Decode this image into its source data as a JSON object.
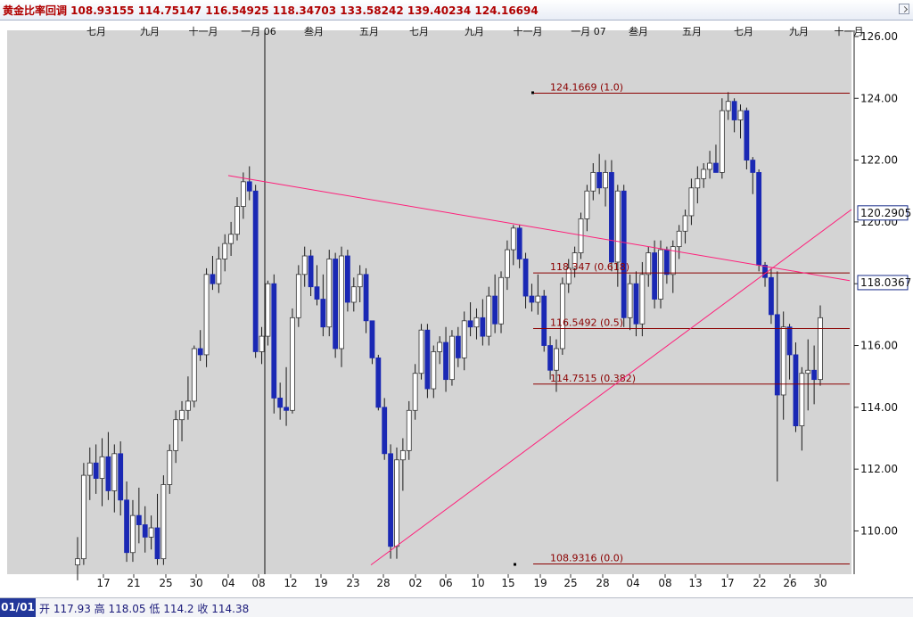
{
  "window": {
    "title": "黄金比率回调 108.93155 114.75147 116.54925 118.34703 133.58242 139.40234 124.16694"
  },
  "status": {
    "period_tab": "01/01",
    "open_label": "开",
    "open_value": "117.93",
    "high_label": "高",
    "high_value": "118.05",
    "low_label": "低",
    "low_value": "114.2",
    "close_label": "收",
    "close_value": "114.38"
  },
  "colors": {
    "plot_background": "#d4d4d4",
    "up_candle": "#ffffff",
    "down_candle": "#1a28b4",
    "wick": "#1a1a1a",
    "fib_line": "#8b0000",
    "fib_label": "#8b0000",
    "trend_line": "#ff1f7a",
    "value_box_border": "#1a2e8a"
  },
  "chart_data": {
    "type": "candlestick",
    "y_range": [
      108.6,
      126.2
    ],
    "y_ticks": [
      "126.00",
      "124.00",
      "122.00",
      "120.00",
      "118.00",
      "116.00",
      "114.00",
      "112.00",
      "110.00"
    ],
    "y_tick_values": [
      126,
      124,
      122,
      120,
      118,
      116,
      114,
      112,
      110
    ],
    "grid": false,
    "month_labels": [
      "七月",
      "九月",
      "十一月",
      "一月 06",
      "叁月",
      "五月",
      "七月",
      "九月",
      "十一月",
      "一月 07",
      "叁月",
      "五月",
      "七月",
      "九月",
      "十一月"
    ],
    "day_labels": [
      "17",
      "21",
      "25",
      "30",
      "04",
      "08",
      "12",
      "19",
      "23",
      "28",
      "02",
      "06",
      "10",
      "15",
      "19",
      "25",
      "28",
      "04",
      "08",
      "13",
      "17",
      "22",
      "26",
      "30"
    ],
    "fib_levels": [
      {
        "label": "124.1669 (1.0)",
        "value": 124.1669
      },
      {
        "label": "118.347 (0.618)",
        "value": 118.347
      },
      {
        "label": "116.5492 (0.5)",
        "value": 116.5492
      },
      {
        "label": "114.7515 (0.382)",
        "value": 114.7515
      },
      {
        "label": "108.9316 (0.0)",
        "value": 108.9316
      }
    ],
    "value_boxes": [
      {
        "label": "120.2905",
        "value": 120.2905
      },
      {
        "label": "118.0367",
        "value": 118.0367
      }
    ],
    "candles": [
      {
        "o": 108.9,
        "h": 109.8,
        "l": 108.4,
        "c": 109.1
      },
      {
        "o": 109.1,
        "h": 112.2,
        "l": 108.9,
        "c": 111.8
      },
      {
        "o": 111.8,
        "h": 112.7,
        "l": 111.0,
        "c": 112.2
      },
      {
        "o": 112.2,
        "h": 112.8,
        "l": 111.2,
        "c": 111.7
      },
      {
        "o": 111.7,
        "h": 113.0,
        "l": 110.8,
        "c": 112.4
      },
      {
        "o": 112.4,
        "h": 113.2,
        "l": 111.0,
        "c": 111.3
      },
      {
        "o": 111.3,
        "h": 112.8,
        "l": 110.6,
        "c": 112.5
      },
      {
        "o": 112.5,
        "h": 112.9,
        "l": 110.5,
        "c": 111.0
      },
      {
        "o": 111.0,
        "h": 111.6,
        "l": 109.0,
        "c": 109.3
      },
      {
        "o": 109.3,
        "h": 111.0,
        "l": 109.0,
        "c": 110.5
      },
      {
        "o": 110.5,
        "h": 111.4,
        "l": 109.6,
        "c": 110.2
      },
      {
        "o": 110.2,
        "h": 110.8,
        "l": 109.3,
        "c": 109.8
      },
      {
        "o": 109.8,
        "h": 110.5,
        "l": 109.4,
        "c": 110.1
      },
      {
        "o": 110.1,
        "h": 111.2,
        "l": 108.9,
        "c": 109.1
      },
      {
        "o": 109.1,
        "h": 111.8,
        "l": 108.9,
        "c": 111.5
      },
      {
        "o": 111.5,
        "h": 112.8,
        "l": 111.2,
        "c": 112.6
      },
      {
        "o": 112.6,
        "h": 113.9,
        "l": 112.2,
        "c": 113.6
      },
      {
        "o": 113.6,
        "h": 114.2,
        "l": 112.9,
        "c": 113.9
      },
      {
        "o": 113.9,
        "h": 115.0,
        "l": 113.6,
        "c": 114.2
      },
      {
        "o": 114.2,
        "h": 116.0,
        "l": 114.0,
        "c": 115.9
      },
      {
        "o": 115.9,
        "h": 116.5,
        "l": 115.5,
        "c": 115.7
      },
      {
        "o": 115.7,
        "h": 118.5,
        "l": 115.3,
        "c": 118.3
      },
      {
        "o": 118.3,
        "h": 118.9,
        "l": 117.8,
        "c": 118.0
      },
      {
        "o": 118.0,
        "h": 119.2,
        "l": 117.7,
        "c": 118.8
      },
      {
        "o": 118.8,
        "h": 119.6,
        "l": 118.4,
        "c": 119.3
      },
      {
        "o": 119.3,
        "h": 120.0,
        "l": 118.9,
        "c": 119.6
      },
      {
        "o": 119.6,
        "h": 120.8,
        "l": 119.4,
        "c": 120.5
      },
      {
        "o": 120.5,
        "h": 121.6,
        "l": 120.1,
        "c": 121.3
      },
      {
        "o": 121.3,
        "h": 121.8,
        "l": 120.7,
        "c": 121.0
      },
      {
        "o": 121.0,
        "h": 121.2,
        "l": 115.6,
        "c": 115.8
      },
      {
        "o": 115.8,
        "h": 116.6,
        "l": 115.4,
        "c": 116.3
      },
      {
        "o": 116.3,
        "h": 118.1,
        "l": 116.0,
        "c": 118.0
      },
      {
        "o": 118.0,
        "h": 118.3,
        "l": 113.8,
        "c": 114.3
      },
      {
        "o": 114.3,
        "h": 114.8,
        "l": 113.6,
        "c": 114.0
      },
      {
        "o": 114.0,
        "h": 115.3,
        "l": 113.4,
        "c": 113.9
      },
      {
        "o": 113.9,
        "h": 117.2,
        "l": 113.8,
        "c": 116.9
      },
      {
        "o": 116.9,
        "h": 118.6,
        "l": 116.6,
        "c": 118.3
      },
      {
        "o": 118.3,
        "h": 119.2,
        "l": 117.9,
        "c": 118.9
      },
      {
        "o": 118.9,
        "h": 119.1,
        "l": 117.6,
        "c": 117.9
      },
      {
        "o": 117.9,
        "h": 118.6,
        "l": 117.3,
        "c": 117.5
      },
      {
        "o": 117.5,
        "h": 118.3,
        "l": 116.3,
        "c": 116.6
      },
      {
        "o": 116.6,
        "h": 119.1,
        "l": 116.3,
        "c": 118.8
      },
      {
        "o": 118.8,
        "h": 119.0,
        "l": 115.6,
        "c": 115.9
      },
      {
        "o": 115.9,
        "h": 119.2,
        "l": 115.3,
        "c": 118.9
      },
      {
        "o": 118.9,
        "h": 119.1,
        "l": 117.1,
        "c": 117.4
      },
      {
        "o": 117.4,
        "h": 118.2,
        "l": 117.1,
        "c": 117.9
      },
      {
        "o": 117.9,
        "h": 118.6,
        "l": 117.4,
        "c": 118.3
      },
      {
        "o": 118.3,
        "h": 118.5,
        "l": 116.4,
        "c": 116.8
      },
      {
        "o": 116.8,
        "h": 116.8,
        "l": 115.4,
        "c": 115.6
      },
      {
        "o": 115.6,
        "h": 115.7,
        "l": 113.9,
        "c": 114.0
      },
      {
        "o": 114.0,
        "h": 114.3,
        "l": 112.3,
        "c": 112.5
      },
      {
        "o": 112.5,
        "h": 112.8,
        "l": 109.1,
        "c": 109.5
      },
      {
        "o": 109.5,
        "h": 112.7,
        "l": 109.1,
        "c": 112.3
      },
      {
        "o": 112.3,
        "h": 113.0,
        "l": 111.3,
        "c": 112.6
      },
      {
        "o": 112.6,
        "h": 114.2,
        "l": 112.3,
        "c": 113.9
      },
      {
        "o": 113.9,
        "h": 115.4,
        "l": 113.6,
        "c": 115.1
      },
      {
        "o": 115.1,
        "h": 116.7,
        "l": 114.9,
        "c": 116.5
      },
      {
        "o": 116.5,
        "h": 116.7,
        "l": 114.3,
        "c": 114.6
      },
      {
        "o": 114.6,
        "h": 116.0,
        "l": 114.3,
        "c": 115.8
      },
      {
        "o": 115.8,
        "h": 116.3,
        "l": 115.4,
        "c": 116.1
      },
      {
        "o": 116.1,
        "h": 116.6,
        "l": 114.5,
        "c": 114.9
      },
      {
        "o": 114.9,
        "h": 116.5,
        "l": 114.7,
        "c": 116.3
      },
      {
        "o": 116.3,
        "h": 116.6,
        "l": 115.3,
        "c": 115.6
      },
      {
        "o": 115.6,
        "h": 117.1,
        "l": 115.2,
        "c": 116.8
      },
      {
        "o": 116.8,
        "h": 117.4,
        "l": 116.3,
        "c": 116.6
      },
      {
        "o": 116.6,
        "h": 117.2,
        "l": 116.2,
        "c": 116.9
      },
      {
        "o": 116.9,
        "h": 117.5,
        "l": 116.0,
        "c": 116.3
      },
      {
        "o": 116.3,
        "h": 117.9,
        "l": 116.0,
        "c": 117.6
      },
      {
        "o": 117.6,
        "h": 118.3,
        "l": 116.4,
        "c": 116.7
      },
      {
        "o": 116.7,
        "h": 118.4,
        "l": 116.4,
        "c": 118.2
      },
      {
        "o": 118.2,
        "h": 119.4,
        "l": 117.8,
        "c": 119.1
      },
      {
        "o": 119.1,
        "h": 119.9,
        "l": 118.6,
        "c": 119.8
      },
      {
        "o": 119.8,
        "h": 119.9,
        "l": 118.5,
        "c": 118.8
      },
      {
        "o": 118.8,
        "h": 119.0,
        "l": 117.2,
        "c": 117.6
      },
      {
        "o": 117.6,
        "h": 118.0,
        "l": 117.1,
        "c": 117.4
      },
      {
        "o": 117.4,
        "h": 118.3,
        "l": 117.0,
        "c": 117.6
      },
      {
        "o": 117.6,
        "h": 117.8,
        "l": 115.8,
        "c": 116.0
      },
      {
        "o": 116.0,
        "h": 116.3,
        "l": 114.9,
        "c": 115.2
      },
      {
        "o": 115.2,
        "h": 116.2,
        "l": 114.5,
        "c": 115.9
      },
      {
        "o": 115.9,
        "h": 118.2,
        "l": 115.7,
        "c": 118.0
      },
      {
        "o": 118.0,
        "h": 118.8,
        "l": 117.7,
        "c": 118.5
      },
      {
        "o": 118.5,
        "h": 119.2,
        "l": 118.2,
        "c": 119.0
      },
      {
        "o": 119.0,
        "h": 120.3,
        "l": 118.8,
        "c": 120.1
      },
      {
        "o": 120.1,
        "h": 121.2,
        "l": 119.7,
        "c": 121.0
      },
      {
        "o": 121.0,
        "h": 121.9,
        "l": 120.7,
        "c": 121.6
      },
      {
        "o": 121.6,
        "h": 122.2,
        "l": 120.9,
        "c": 121.1
      },
      {
        "o": 121.1,
        "h": 122.0,
        "l": 120.5,
        "c": 121.6
      },
      {
        "o": 121.6,
        "h": 122.0,
        "l": 118.4,
        "c": 118.7
      },
      {
        "o": 118.7,
        "h": 121.2,
        "l": 117.9,
        "c": 121.0
      },
      {
        "o": 121.0,
        "h": 121.2,
        "l": 116.6,
        "c": 116.9
      },
      {
        "o": 116.9,
        "h": 118.3,
        "l": 116.5,
        "c": 118.0
      },
      {
        "o": 118.0,
        "h": 118.4,
        "l": 116.3,
        "c": 116.7
      },
      {
        "o": 116.7,
        "h": 118.7,
        "l": 116.3,
        "c": 118.3
      },
      {
        "o": 118.3,
        "h": 119.2,
        "l": 117.9,
        "c": 119.0
      },
      {
        "o": 119.0,
        "h": 119.4,
        "l": 117.2,
        "c": 117.5
      },
      {
        "o": 117.5,
        "h": 119.4,
        "l": 117.2,
        "c": 119.1
      },
      {
        "o": 119.1,
        "h": 119.2,
        "l": 118.0,
        "c": 118.3
      },
      {
        "o": 118.3,
        "h": 119.4,
        "l": 117.7,
        "c": 119.2
      },
      {
        "o": 119.2,
        "h": 119.9,
        "l": 118.8,
        "c": 119.7
      },
      {
        "o": 119.7,
        "h": 120.4,
        "l": 119.3,
        "c": 120.2
      },
      {
        "o": 120.2,
        "h": 121.4,
        "l": 119.9,
        "c": 121.1
      },
      {
        "o": 121.1,
        "h": 121.8,
        "l": 120.6,
        "c": 121.4
      },
      {
        "o": 121.4,
        "h": 121.9,
        "l": 121.1,
        "c": 121.7
      },
      {
        "o": 121.7,
        "h": 122.3,
        "l": 121.4,
        "c": 121.9
      },
      {
        "o": 121.9,
        "h": 122.5,
        "l": 121.6,
        "c": 121.6
      },
      {
        "o": 121.6,
        "h": 124.0,
        "l": 121.4,
        "c": 123.6
      },
      {
        "o": 123.6,
        "h": 124.2,
        "l": 123.3,
        "c": 123.9
      },
      {
        "o": 123.9,
        "h": 124.0,
        "l": 122.9,
        "c": 123.3
      },
      {
        "o": 123.3,
        "h": 123.8,
        "l": 122.7,
        "c": 123.6
      },
      {
        "o": 123.6,
        "h": 123.7,
        "l": 121.7,
        "c": 122.0
      },
      {
        "o": 122.0,
        "h": 122.1,
        "l": 120.9,
        "c": 121.6
      },
      {
        "o": 121.6,
        "h": 121.7,
        "l": 118.4,
        "c": 118.6
      },
      {
        "o": 118.6,
        "h": 118.7,
        "l": 117.9,
        "c": 118.2
      },
      {
        "o": 118.2,
        "h": 118.5,
        "l": 116.7,
        "c": 117.0
      },
      {
        "o": 117.0,
        "h": 118.4,
        "l": 111.6,
        "c": 114.4
      },
      {
        "o": 114.4,
        "h": 117.1,
        "l": 113.6,
        "c": 116.6
      },
      {
        "o": 116.6,
        "h": 116.7,
        "l": 114.9,
        "c": 115.7
      },
      {
        "o": 115.7,
        "h": 116.1,
        "l": 113.2,
        "c": 113.4
      },
      {
        "o": 113.4,
        "h": 115.3,
        "l": 112.6,
        "c": 115.1
      },
      {
        "o": 115.1,
        "h": 116.2,
        "l": 113.9,
        "c": 115.2
      },
      {
        "o": 115.2,
        "h": 116.0,
        "l": 114.1,
        "c": 114.9
      },
      {
        "o": 114.9,
        "h": 117.3,
        "l": 114.7,
        "c": 116.9
      }
    ]
  }
}
